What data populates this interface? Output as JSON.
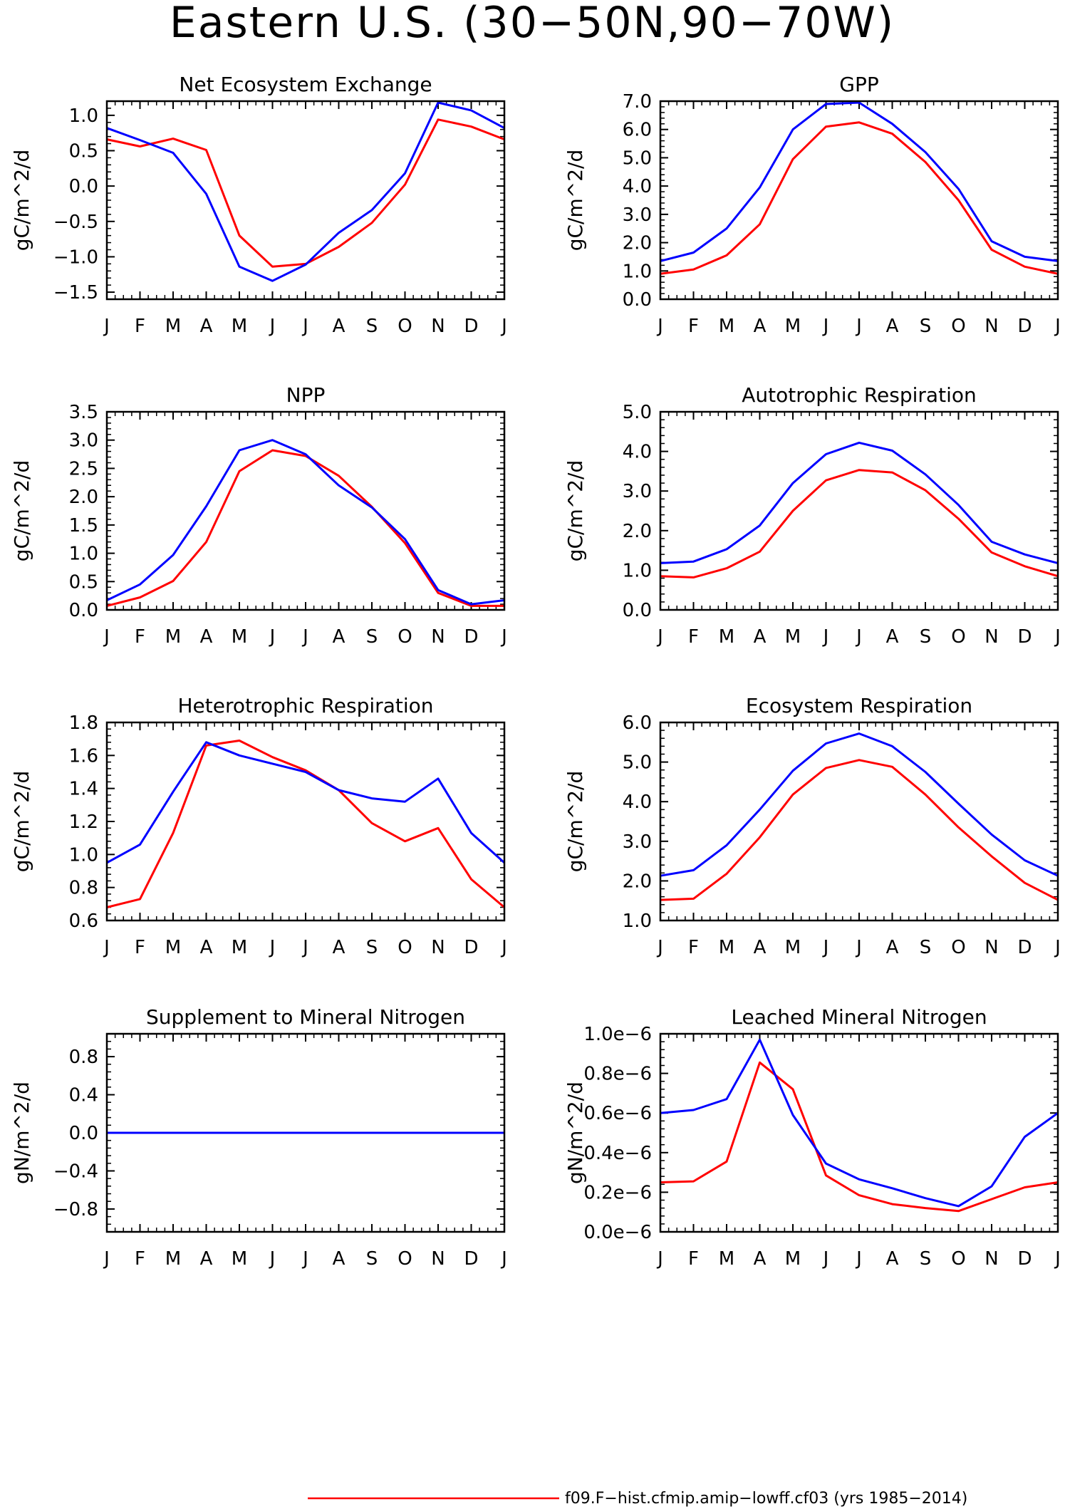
{
  "title": "Eastern U.S. (30−50N,90−70W)",
  "legend": {
    "label": "f09.F−hist.cfmip.amip−lowff.cf03 (yrs 1985−2014)",
    "color": "#ff0000"
  },
  "colors": {
    "red": "#ff0000",
    "blue": "#0000ff"
  },
  "months": [
    "J",
    "F",
    "M",
    "A",
    "M",
    "J",
    "J",
    "A",
    "S",
    "O",
    "N",
    "D",
    "J"
  ],
  "chart_data": [
    {
      "type": "line",
      "title": "Net Ecosystem Exchange",
      "ylabel": "gC/m^2/d",
      "ylim": [
        -1.6,
        1.2
      ],
      "yticks": [
        1.0,
        0.5,
        0.0,
        -0.5,
        -1.0,
        -1.5
      ],
      "yticklabels": [
        "1.0",
        "0.5",
        "0.0",
        "−0.5",
        "−1.0",
        "−1.5"
      ],
      "x": [
        "J",
        "F",
        "M",
        "A",
        "M",
        "J",
        "J",
        "A",
        "S",
        "O",
        "N",
        "D",
        "J"
      ],
      "series": [
        {
          "color": "#ff0000",
          "values": [
            0.66,
            0.56,
            0.67,
            0.51,
            -0.7,
            -1.14,
            -1.1,
            -0.86,
            -0.52,
            0.02,
            0.94,
            0.84,
            0.66
          ]
        },
        {
          "color": "#0000ff",
          "values": [
            0.82,
            0.65,
            0.47,
            -0.11,
            -1.14,
            -1.34,
            -1.11,
            -0.66,
            -0.34,
            0.18,
            1.18,
            1.07,
            0.82
          ]
        }
      ]
    },
    {
      "type": "line",
      "title": "GPP",
      "ylabel": "gC/m^2/d",
      "ylim": [
        0.0,
        7.0
      ],
      "yticks": [
        7.0,
        6.0,
        5.0,
        4.0,
        3.0,
        2.0,
        1.0,
        0.0
      ],
      "yticklabels": [
        "7.0",
        "6.0",
        "5.0",
        "4.0",
        "3.0",
        "2.0",
        "1.0",
        "0.0"
      ],
      "x": [
        "J",
        "F",
        "M",
        "A",
        "M",
        "J",
        "J",
        "A",
        "S",
        "O",
        "N",
        "D",
        "J"
      ],
      "series": [
        {
          "color": "#ff0000",
          "values": [
            0.9,
            1.05,
            1.55,
            2.65,
            4.95,
            6.1,
            6.25,
            5.85,
            4.85,
            3.5,
            1.75,
            1.15,
            0.9
          ]
        },
        {
          "color": "#0000ff",
          "values": [
            1.35,
            1.65,
            2.5,
            3.95,
            6.0,
            6.9,
            6.95,
            6.2,
            5.2,
            3.9,
            2.05,
            1.5,
            1.35
          ]
        }
      ]
    },
    {
      "type": "line",
      "title": "NPP",
      "ylabel": "gC/m^2/d",
      "ylim": [
        0.0,
        3.5
      ],
      "yticks": [
        3.5,
        3.0,
        2.5,
        2.0,
        1.5,
        1.0,
        0.5,
        0.0
      ],
      "yticklabels": [
        "3.5",
        "3.0",
        "2.5",
        "2.0",
        "1.5",
        "1.0",
        "0.5",
        "0.0"
      ],
      "x": [
        "J",
        "F",
        "M",
        "A",
        "M",
        "J",
        "J",
        "A",
        "S",
        "O",
        "N",
        "D",
        "J"
      ],
      "series": [
        {
          "color": "#ff0000",
          "values": [
            0.07,
            0.22,
            0.51,
            1.2,
            2.45,
            2.82,
            2.72,
            2.37,
            1.82,
            1.18,
            0.3,
            0.07,
            0.07
          ]
        },
        {
          "color": "#0000ff",
          "values": [
            0.17,
            0.45,
            0.97,
            1.83,
            2.82,
            3.0,
            2.75,
            2.2,
            1.81,
            1.25,
            0.35,
            0.1,
            0.17
          ]
        }
      ]
    },
    {
      "type": "line",
      "title": "Autotrophic Respiration",
      "ylabel": "gC/m^2/d",
      "ylim": [
        0.0,
        5.0
      ],
      "yticks": [
        5.0,
        4.0,
        3.0,
        2.0,
        1.0,
        0.0
      ],
      "yticklabels": [
        "5.0",
        "4.0",
        "3.0",
        "2.0",
        "1.0",
        "0.0"
      ],
      "x": [
        "J",
        "F",
        "M",
        "A",
        "M",
        "J",
        "J",
        "A",
        "S",
        "O",
        "N",
        "D",
        "J"
      ],
      "series": [
        {
          "color": "#ff0000",
          "values": [
            0.85,
            0.82,
            1.05,
            1.47,
            2.5,
            3.27,
            3.53,
            3.47,
            3.02,
            2.3,
            1.45,
            1.1,
            0.85
          ]
        },
        {
          "color": "#0000ff",
          "values": [
            1.18,
            1.22,
            1.53,
            2.13,
            3.2,
            3.93,
            4.22,
            4.02,
            3.42,
            2.65,
            1.72,
            1.4,
            1.18
          ]
        }
      ]
    },
    {
      "type": "line",
      "title": "Heterotrophic Respiration",
      "ylabel": "gC/m^2/d",
      "ylim": [
        0.6,
        1.8
      ],
      "yticks": [
        1.8,
        1.6,
        1.4,
        1.2,
        1.0,
        0.8,
        0.6
      ],
      "yticklabels": [
        "1.8",
        "1.6",
        "1.4",
        "1.2",
        "1.0",
        "0.8",
        "0.6"
      ],
      "x": [
        "J",
        "F",
        "M",
        "A",
        "M",
        "J",
        "J",
        "A",
        "S",
        "O",
        "N",
        "D",
        "J"
      ],
      "series": [
        {
          "color": "#ff0000",
          "values": [
            0.68,
            0.73,
            1.13,
            1.66,
            1.69,
            1.59,
            1.51,
            1.39,
            1.19,
            1.08,
            1.16,
            0.85,
            0.68
          ]
        },
        {
          "color": "#0000ff",
          "values": [
            0.95,
            1.06,
            1.38,
            1.68,
            1.6,
            1.55,
            1.5,
            1.39,
            1.34,
            1.32,
            1.46,
            1.13,
            0.95
          ]
        }
      ]
    },
    {
      "type": "line",
      "title": "Ecosystem Respiration",
      "ylabel": "gC/m^2/d",
      "ylim": [
        1.0,
        6.0
      ],
      "yticks": [
        6.0,
        5.0,
        4.0,
        3.0,
        2.0,
        1.0
      ],
      "yticklabels": [
        "6.0",
        "5.0",
        "4.0",
        "3.0",
        "2.0",
        "1.0"
      ],
      "x": [
        "J",
        "F",
        "M",
        "A",
        "M",
        "J",
        "J",
        "A",
        "S",
        "O",
        "N",
        "D",
        "J"
      ],
      "series": [
        {
          "color": "#ff0000",
          "values": [
            1.52,
            1.55,
            2.18,
            3.1,
            4.18,
            4.85,
            5.05,
            4.88,
            4.18,
            3.35,
            2.62,
            1.95,
            1.52
          ]
        },
        {
          "color": "#0000ff",
          "values": [
            2.13,
            2.27,
            2.9,
            3.8,
            4.78,
            5.47,
            5.72,
            5.4,
            4.75,
            3.95,
            3.17,
            2.52,
            2.13
          ]
        }
      ]
    },
    {
      "type": "line",
      "title": "Supplement to Mineral Nitrogen",
      "ylabel": "gN/m^2/d",
      "ylim": [
        -1.04,
        1.04
      ],
      "yticks": [
        0.8,
        0.4,
        0.0,
        -0.4,
        -0.8
      ],
      "yticklabels": [
        "0.8",
        "0.4",
        "0.0",
        "−0.4",
        "−0.8"
      ],
      "x": [
        "J",
        "F",
        "M",
        "A",
        "M",
        "J",
        "J",
        "A",
        "S",
        "O",
        "N",
        "D",
        "J"
      ],
      "series": [
        {
          "color": "#ff0000",
          "values": [
            0,
            0,
            0,
            0,
            0,
            0,
            0,
            0,
            0,
            0,
            0,
            0,
            0
          ]
        },
        {
          "color": "#0000ff",
          "values": [
            0,
            0,
            0,
            0,
            0,
            0,
            0,
            0,
            0,
            0,
            0,
            0,
            0
          ]
        }
      ]
    },
    {
      "type": "line",
      "title": "Leached Mineral Nitrogen",
      "ylabel": "gN/m^2/d",
      "ylim": [
        0.0,
        1e-06
      ],
      "yticks": [
        1e-06,
        8e-07,
        6e-07,
        4e-07,
        2e-07,
        0.0
      ],
      "yticklabels": [
        "1.0e−6",
        "0.8e−6",
        "0.6e−6",
        "0.4e−6",
        "0.2e−6",
        "0.0e−6"
      ],
      "x": [
        "J",
        "F",
        "M",
        "A",
        "M",
        "J",
        "J",
        "A",
        "S",
        "O",
        "N",
        "D",
        "J"
      ],
      "series": [
        {
          "color": "#ff0000",
          "values": [
            2.5e-07,
            2.55e-07,
            3.55e-07,
            8.55e-07,
            7.2e-07,
            2.85e-07,
            1.85e-07,
            1.4e-07,
            1.2e-07,
            1.05e-07,
            1.65e-07,
            2.25e-07,
            2.5e-07
          ]
        },
        {
          "color": "#0000ff",
          "values": [
            6e-07,
            6.15e-07,
            6.7e-07,
            9.7e-07,
            5.9e-07,
            3.45e-07,
            2.65e-07,
            2.2e-07,
            1.7e-07,
            1.3e-07,
            2.3e-07,
            4.8e-07,
            6e-07
          ]
        }
      ]
    }
  ]
}
